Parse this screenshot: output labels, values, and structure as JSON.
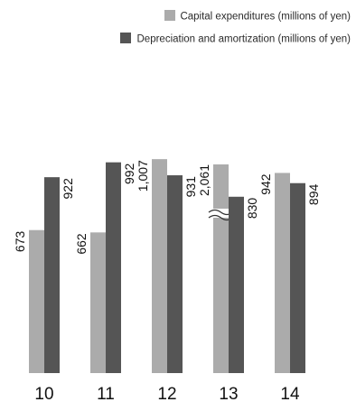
{
  "chart_data": {
    "type": "bar",
    "categories": [
      "10",
      "11",
      "12",
      "13",
      "14"
    ],
    "series": [
      {
        "name": "Capital expenditures (millions of yen)",
        "color": "#ababab",
        "values": [
          673,
          662,
          1007,
          2061,
          942
        ],
        "labels": [
          "673",
          "662",
          "1,007",
          "2,061",
          "942"
        ]
      },
      {
        "name": "Depreciation and amortization (millions of yen)",
        "color": "#555555",
        "values": [
          922,
          992,
          931,
          830,
          894
        ],
        "labels": [
          "922",
          "992",
          "931",
          "830",
          "894"
        ]
      }
    ],
    "broken_bars": [
      {
        "series": 0,
        "category": "13"
      }
    ],
    "ylim": [
      0,
      1100
    ],
    "axis_break": true,
    "legend_position": "top-right",
    "grid": false
  }
}
